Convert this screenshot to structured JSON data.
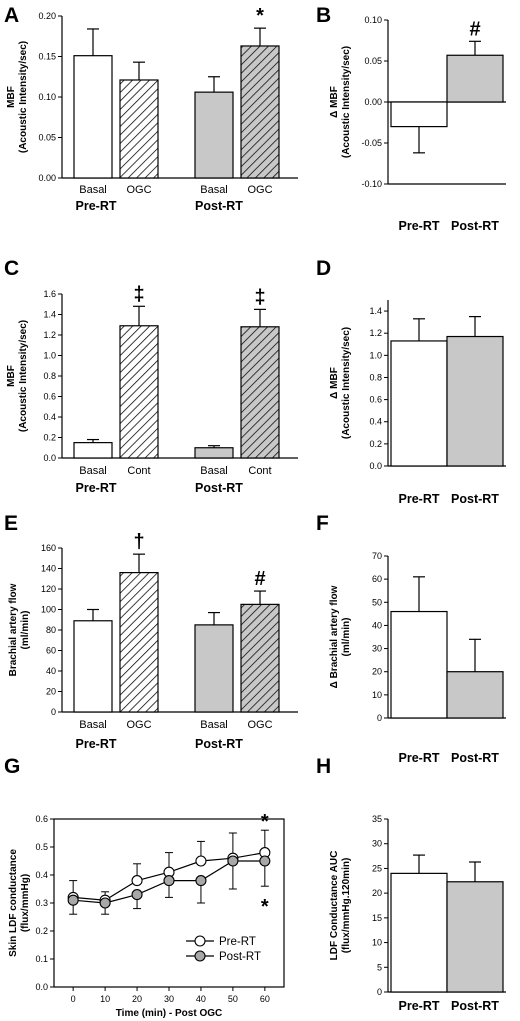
{
  "colors": {
    "pre_bar": "#ffffff",
    "post_bar": "#c8c8c8",
    "stroke": "#000000",
    "pre_marker": "#ffffff",
    "post_marker": "#a8a8a8"
  },
  "chart_data": [
    {
      "panel": "A",
      "type": "bar",
      "ylabel": [
        "MBF",
        "(Acoustic Intensity/sec)"
      ],
      "ylim": [
        0,
        0.2
      ],
      "yticks": [
        "0.00",
        "0.05",
        "0.10",
        "0.15",
        "0.20"
      ],
      "groups": [
        "Pre-RT",
        "Post-RT"
      ],
      "categories": [
        "Basal",
        "OGC",
        "Basal",
        "OGC"
      ],
      "values": [
        0.151,
        0.121,
        0.106,
        0.163
      ],
      "errors": [
        0.033,
        0.022,
        0.019,
        0.022
      ],
      "fills": [
        "white",
        "hatch-white",
        "gray",
        "hatch-gray"
      ],
      "annotations": [
        {
          "bar": 3,
          "text": "*"
        }
      ]
    },
    {
      "panel": "B",
      "type": "bar",
      "ylabel": [
        "Δ MBF",
        "(Acoustic Intensity/sec)"
      ],
      "ylim": [
        -0.1,
        0.1
      ],
      "yticks": [
        "-0.10",
        "-0.05",
        "0.00",
        "0.05",
        "0.10"
      ],
      "categories": [
        "Pre-RT",
        "Post-RT"
      ],
      "values": [
        -0.03,
        0.057
      ],
      "errors": [
        0.032,
        0.017
      ],
      "fills": [
        "white",
        "gray"
      ],
      "annotations": [
        {
          "bar": 1,
          "text": "#"
        }
      ]
    },
    {
      "panel": "C",
      "type": "bar",
      "ylabel": [
        "MBF",
        "(Acoustic Intensity/sec)"
      ],
      "ylim": [
        0,
        1.6
      ],
      "yticks": [
        "0.0",
        "0.2",
        "0.4",
        "0.6",
        "0.8",
        "1.0",
        "1.2",
        "1.4",
        "1.6"
      ],
      "groups": [
        "Pre-RT",
        "Post-RT"
      ],
      "categories": [
        "Basal",
        "Cont",
        "Basal",
        "Cont"
      ],
      "values": [
        0.15,
        1.29,
        0.1,
        1.28
      ],
      "errors": [
        0.03,
        0.19,
        0.02,
        0.17
      ],
      "fills": [
        "white",
        "hatch-white",
        "gray",
        "hatch-gray"
      ],
      "annotations": [
        {
          "bar": 1,
          "text": "‡"
        },
        {
          "bar": 3,
          "text": "‡"
        }
      ]
    },
    {
      "panel": "D",
      "type": "bar",
      "ylabel": [
        "Δ MBF",
        "(Acoustic Intensity/sec)"
      ],
      "ylim": [
        0,
        1.5
      ],
      "yticks": [
        "0.0",
        "0.2",
        "0.4",
        "0.6",
        "0.8",
        "1.0",
        "1.2",
        "1.4"
      ],
      "categories": [
        "Pre-RT",
        "Post-RT"
      ],
      "values": [
        1.13,
        1.17
      ],
      "errors": [
        0.2,
        0.18
      ],
      "fills": [
        "white",
        "gray"
      ],
      "annotations": []
    },
    {
      "panel": "E",
      "type": "bar",
      "ylabel": [
        "Brachial artery flow",
        "(ml/min)"
      ],
      "ylim": [
        0,
        160
      ],
      "yticks": [
        "0",
        "20",
        "40",
        "60",
        "80",
        "100",
        "120",
        "140",
        "160"
      ],
      "groups": [
        "Pre-RT",
        "Post-RT"
      ],
      "categories": [
        "Basal",
        "OGC",
        "Basal",
        "OGC"
      ],
      "values": [
        89,
        136,
        85,
        105
      ],
      "errors": [
        11,
        18,
        12,
        13
      ],
      "fills": [
        "white",
        "hatch-white",
        "gray",
        "hatch-gray"
      ],
      "annotations": [
        {
          "bar": 1,
          "text": "†"
        },
        {
          "bar": 3,
          "text": "#"
        }
      ]
    },
    {
      "panel": "F",
      "type": "bar",
      "ylabel": [
        "Δ Brachial artery flow",
        "(ml/min)"
      ],
      "ylim": [
        0,
        70
      ],
      "yticks": [
        "0",
        "10",
        "20",
        "30",
        "40",
        "50",
        "60",
        "70"
      ],
      "categories": [
        "Pre-RT",
        "Post-RT"
      ],
      "values": [
        46,
        20
      ],
      "errors": [
        15,
        14
      ],
      "fills": [
        "white",
        "gray"
      ],
      "annotations": []
    },
    {
      "panel": "G",
      "type": "line",
      "ylabel": [
        "Skin LDF conductance",
        "(flux/mmHg)"
      ],
      "xlabel": "Time (min) - Post OGC",
      "ylim": [
        0,
        0.6
      ],
      "yticks": [
        "0.0",
        "0.1",
        "0.2",
        "0.3",
        "0.4",
        "0.5",
        "0.6"
      ],
      "x": [
        0,
        10,
        20,
        30,
        40,
        50,
        60
      ],
      "xticks": [
        "0",
        "10",
        "20",
        "30",
        "40",
        "50",
        "60"
      ],
      "series": [
        {
          "name": "Pre-RT",
          "values": [
            0.32,
            0.31,
            0.38,
            0.41,
            0.45,
            0.46,
            0.48
          ],
          "errors": [
            0.06,
            0.03,
            0.06,
            0.07,
            0.07,
            0.09,
            0.08
          ],
          "marker": "white"
        },
        {
          "name": "Post-RT",
          "values": [
            0.31,
            0.3,
            0.33,
            0.38,
            0.38,
            0.45,
            0.45
          ],
          "errors": [
            0.05,
            0.04,
            0.05,
            0.06,
            0.08,
            0.1,
            0.09
          ],
          "marker": "gray"
        }
      ],
      "annotations": [
        {
          "x": 60,
          "position": "above",
          "text": "*"
        },
        {
          "x": 60,
          "position": "below",
          "text": "*"
        }
      ]
    },
    {
      "panel": "H",
      "type": "bar",
      "ylabel": [
        "LDF Conductance AUC",
        "(flux/mmHg.120min)"
      ],
      "ylim": [
        0,
        35
      ],
      "yticks": [
        "0",
        "5",
        "10",
        "15",
        "20",
        "25",
        "30",
        "35"
      ],
      "categories": [
        "Pre-RT",
        "Post-RT"
      ],
      "values": [
        24,
        22.3
      ],
      "errors": [
        3.7,
        4
      ],
      "fills": [
        "white",
        "gray"
      ],
      "annotations": []
    }
  ]
}
